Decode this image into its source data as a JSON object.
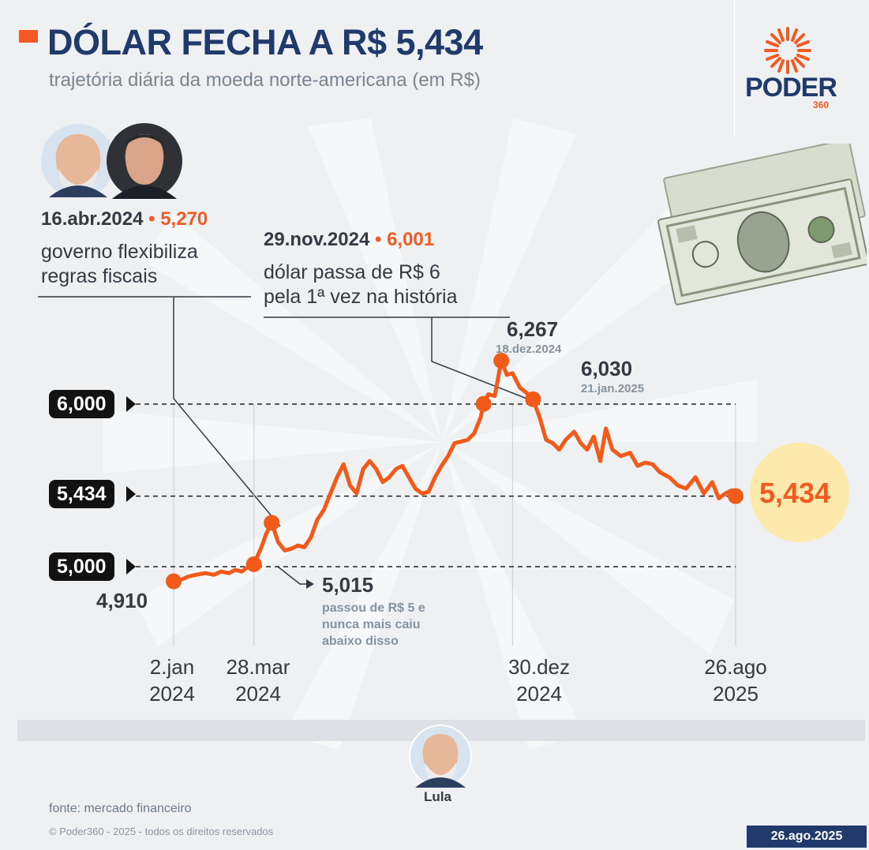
{
  "brand": {
    "name": "PODER",
    "suffix": "360",
    "accent": "#f15a22",
    "primary": "#1f3a6b"
  },
  "annotations": [
    {
      "date": "16.abr.2024",
      "value": "5,270",
      "text1": "governo flexibiliza",
      "text2": "regras fiscais"
    },
    {
      "date": "29.nov.2024",
      "value": "6,001",
      "text1": "dólar passa de R$ 6",
      "text2": "pela 1ª vez na história"
    }
  ],
  "chart_data": {
    "type": "line",
    "title": "DÓLAR FECHA A R$ 5,434",
    "subtitle": "trajetória diária da moeda norte-americana (em R$)",
    "ylim": [
      4.7,
      6.45
    ],
    "xlim": [
      "2024-01-02",
      "2025-08-26"
    ],
    "line_color": "#f25a1a",
    "reference_lines": [
      {
        "value": 6.0,
        "label": "6,000"
      },
      {
        "value": 5.434,
        "label": "5,434"
      },
      {
        "value": 5.0,
        "label": "5,000"
      }
    ],
    "x_ticks": [
      {
        "date": "2024-01-02",
        "line1": "2.jan",
        "line2": "2024"
      },
      {
        "date": "2024-03-28",
        "line1": "28.mar",
        "line2": "2024"
      },
      {
        "date": "2024-12-30",
        "line1": "30.dez",
        "line2": "2024"
      },
      {
        "date": "2025-08-26",
        "line1": "26.ago",
        "line2": "2025"
      }
    ],
    "labels": {
      "start": {
        "value": "4,910"
      },
      "crossed5": {
        "value": "5,015",
        "note1": "passou de R$ 5 e",
        "note2": "nunca mais caiu",
        "note3": "abaixo disso"
      },
      "peak": {
        "value": "6,267",
        "date": "18.dez.2024"
      },
      "jan": {
        "value": "6,030",
        "date": "21.jan.2025"
      },
      "last": {
        "value": "5,434"
      }
    },
    "key_points": [
      {
        "x": "2024-01-02",
        "y": 4.91
      },
      {
        "x": "2024-03-28",
        "y": 5.015
      },
      {
        "x": "2024-04-16",
        "y": 5.27
      },
      {
        "x": "2024-11-29",
        "y": 6.001
      },
      {
        "x": "2024-12-18",
        "y": 6.267
      },
      {
        "x": "2025-01-21",
        "y": 6.03
      },
      {
        "x": "2025-08-26",
        "y": 5.434
      }
    ],
    "series": [
      {
        "x": [
          "2024-01-02",
          "2024-01-10",
          "2024-01-18",
          "2024-01-26",
          "2024-02-05",
          "2024-02-14",
          "2024-02-22",
          "2024-03-01",
          "2024-03-08",
          "2024-03-15",
          "2024-03-22",
          "2024-03-28",
          "2024-04-05",
          "2024-04-10",
          "2024-04-16",
          "2024-04-23",
          "2024-04-30",
          "2024-05-07",
          "2024-05-14",
          "2024-05-21",
          "2024-05-28",
          "2024-06-04",
          "2024-06-11",
          "2024-06-18",
          "2024-06-25",
          "2024-07-02",
          "2024-07-09",
          "2024-07-16",
          "2024-07-23",
          "2024-07-30",
          "2024-08-06",
          "2024-08-13",
          "2024-08-20",
          "2024-08-27",
          "2024-09-03",
          "2024-09-10",
          "2024-09-17",
          "2024-09-24",
          "2024-10-01",
          "2024-10-08",
          "2024-10-15",
          "2024-10-22",
          "2024-10-29",
          "2024-11-05",
          "2024-11-12",
          "2024-11-19",
          "2024-11-26",
          "2024-11-29",
          "2024-12-04",
          "2024-12-11",
          "2024-12-18",
          "2024-12-24",
          "2024-12-30",
          "2025-01-07",
          "2025-01-14",
          "2025-01-21",
          "2025-01-28",
          "2025-02-04",
          "2025-02-11",
          "2025-02-18",
          "2025-02-25",
          "2025-03-06",
          "2025-03-13",
          "2025-03-20",
          "2025-03-27",
          "2025-04-03",
          "2025-04-09",
          "2025-04-16",
          "2025-04-25",
          "2025-05-05",
          "2025-05-13",
          "2025-05-21",
          "2025-05-29",
          "2025-06-06",
          "2025-06-16",
          "2025-06-25",
          "2025-07-04",
          "2025-07-14",
          "2025-07-23",
          "2025-08-01",
          "2025-08-08",
          "2025-08-15",
          "2025-08-22",
          "2025-08-26"
        ],
        "values": [
          4.91,
          4.92,
          4.94,
          4.95,
          4.96,
          4.95,
          4.97,
          4.96,
          4.98,
          4.97,
          5.0,
          5.015,
          5.12,
          5.2,
          5.27,
          5.15,
          5.1,
          5.11,
          5.13,
          5.12,
          5.18,
          5.29,
          5.35,
          5.45,
          5.55,
          5.63,
          5.5,
          5.45,
          5.6,
          5.65,
          5.6,
          5.52,
          5.55,
          5.6,
          5.62,
          5.55,
          5.48,
          5.45,
          5.46,
          5.55,
          5.62,
          5.68,
          5.76,
          5.77,
          5.78,
          5.82,
          5.92,
          6.001,
          6.06,
          6.05,
          6.267,
          6.18,
          6.19,
          6.1,
          6.07,
          6.03,
          5.92,
          5.78,
          5.76,
          5.72,
          5.78,
          5.83,
          5.76,
          5.72,
          5.8,
          5.65,
          5.85,
          5.72,
          5.68,
          5.7,
          5.62,
          5.64,
          5.63,
          5.58,
          5.55,
          5.5,
          5.48,
          5.55,
          5.45,
          5.52,
          5.42,
          5.45,
          5.47,
          5.434
        ]
      }
    ]
  },
  "footer": {
    "person": "Lula",
    "source": "fonte: mercado financeiro",
    "copyright": "© Poder360 - 2025 - todos os direitos reservados",
    "date": "26.ago.2025"
  }
}
